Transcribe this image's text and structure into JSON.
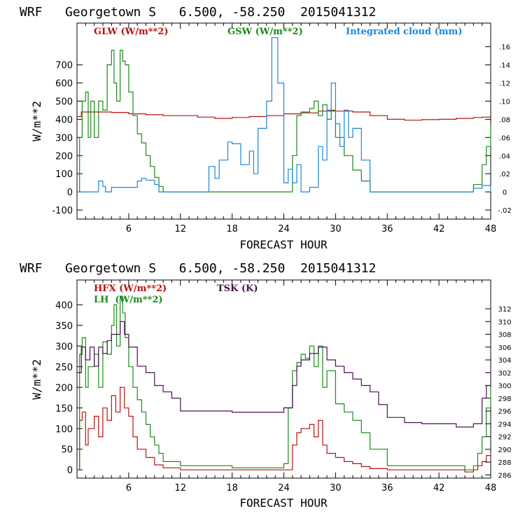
{
  "chart_data": [
    {
      "type": "line",
      "title": "WRF   Georgetown S   6.500, -58.250  2015041312",
      "xlabel": "FORECAST HOUR",
      "ylabel": "W/m**2",
      "xlim": [
        0,
        48
      ],
      "ylim": [
        -150,
        930
      ],
      "y2lim": [
        -0.03,
        0.186
      ],
      "xticks": [
        "6",
        "12",
        "18",
        "24",
        "30",
        "36",
        "42",
        "48"
      ],
      "yticks": [
        "-100",
        "0",
        "100",
        "200",
        "300",
        "400",
        "500",
        "600",
        "700"
      ],
      "y2ticks": [
        "-.02",
        "0",
        ".02",
        ".04",
        ".06",
        ".08",
        ".10",
        ".12",
        ".14",
        ".16"
      ],
      "legend": [
        "GLW (W/m**2)",
        "GSW (W/m**2)",
        "Integrated cloud (mm)"
      ],
      "series": [
        {
          "name": "GLW (W/m**2)",
          "axis": "left",
          "color": "#bb1111",
          "x": [
            0,
            0.5,
            1,
            2,
            4,
            6,
            8,
            10,
            12,
            14,
            16,
            18,
            20,
            22,
            24,
            26,
            28,
            30,
            32,
            34,
            36,
            38,
            40,
            42,
            44,
            46,
            47,
            48
          ],
          "y": [
            415,
            440,
            440,
            440,
            438,
            430,
            425,
            420,
            420,
            412,
            405,
            410,
            415,
            420,
            430,
            435,
            445,
            445,
            440,
            420,
            400,
            395,
            398,
            400,
            405,
            410,
            412,
            405
          ]
        },
        {
          "name": "GSW (W/m**2)",
          "axis": "left",
          "color": "#1a8a1a",
          "x": [
            0,
            0.3,
            0.6,
            1,
            1.3,
            1.6,
            2,
            2.5,
            3,
            3.5,
            4,
            4.3,
            4.6,
            5,
            5.3,
            5.6,
            6,
            6.5,
            7,
            7.5,
            8,
            8.5,
            9,
            9.5,
            10,
            24,
            25,
            25.5,
            26,
            27,
            27.5,
            28,
            28.5,
            29,
            29.5,
            30,
            31,
            32,
            33,
            34,
            45,
            46,
            47,
            47.5,
            48
          ],
          "y": [
            0,
            300,
            500,
            550,
            300,
            500,
            300,
            500,
            450,
            700,
            780,
            600,
            500,
            780,
            720,
            700,
            550,
            420,
            320,
            270,
            200,
            140,
            80,
            30,
            0,
            0,
            200,
            420,
            440,
            460,
            500,
            420,
            480,
            400,
            450,
            300,
            200,
            120,
            60,
            0,
            0,
            40,
            150,
            250,
            370
          ]
        },
        {
          "name": "Integrated cloud (mm)",
          "axis": "right",
          "color": "#1f85d8",
          "x": [
            0,
            2,
            2.5,
            3,
            3.3,
            4,
            6,
            7,
            7.5,
            8,
            9,
            9.5,
            15,
            15.3,
            16,
            16.5,
            17.5,
            18,
            19,
            20,
            20.5,
            21,
            22,
            22.6,
            23.3,
            24,
            24.5,
            25,
            25.5,
            26,
            27,
            28,
            28.5,
            29,
            29.5,
            30,
            30.5,
            31,
            31.5,
            32,
            33,
            34,
            45,
            46,
            47,
            48
          ],
          "y": [
            0,
            0,
            0.012,
            0.006,
            0,
            0.005,
            0.005,
            0.012,
            0.015,
            0.013,
            0.008,
            0,
            0,
            0.028,
            0.015,
            0.035,
            0.055,
            0.053,
            0.03,
            0.045,
            0.02,
            0.07,
            0.1,
            0.17,
            0.12,
            0.01,
            0.025,
            0.01,
            0.03,
            0,
            0.005,
            0.05,
            0.035,
            0.09,
            0.12,
            0.075,
            0.05,
            0.09,
            0.06,
            0.07,
            0.035,
            0,
            0,
            0.004,
            0.007,
            0
          ]
        }
      ]
    },
    {
      "type": "line",
      "title": "WRF   Georgetown S   6.500, -58.250  2015041312",
      "xlabel": "FORECAST HOUR",
      "ylabel": "W/m**2",
      "xlim": [
        0,
        48
      ],
      "ylim": [
        -20,
        460
      ],
      "y2lim": [
        285.5,
        316.5
      ],
      "xticks": [
        "6",
        "12",
        "18",
        "24",
        "30",
        "36",
        "42",
        "48"
      ],
      "yticks": [
        "0",
        "50",
        "100",
        "150",
        "200",
        "250",
        "300",
        "350",
        "400"
      ],
      "y2ticks": [
        "286",
        "288",
        "290",
        "292",
        "294",
        "296",
        "298",
        "300",
        "302",
        "304",
        "306",
        "308",
        "310",
        "312"
      ],
      "legend": [
        "HFX (W/m**2)",
        "LH  (W/m**2)",
        "TSK (K)"
      ],
      "series": [
        {
          "name": "HFX (W/m**2)",
          "axis": "left",
          "color": "#bb1111",
          "x": [
            0,
            0.3,
            0.6,
            1,
            1.3,
            2,
            2.5,
            3,
            3.5,
            4,
            4.5,
            5,
            5.5,
            6,
            6.5,
            7,
            8,
            9,
            10,
            12,
            18,
            24,
            25,
            25.5,
            26,
            27,
            27.5,
            28,
            28.5,
            29,
            30,
            31,
            32,
            33,
            34,
            36,
            45,
            46,
            46.5,
            47,
            47.5,
            48
          ],
          "y": [
            0,
            120,
            140,
            60,
            100,
            130,
            80,
            150,
            120,
            180,
            140,
            200,
            150,
            130,
            80,
            50,
            30,
            12,
            5,
            0,
            0,
            0,
            60,
            90,
            100,
            110,
            80,
            120,
            60,
            40,
            30,
            20,
            15,
            8,
            3,
            0,
            -5,
            0,
            10,
            20,
            35,
            40
          ]
        },
        {
          "name": "LH  (W/m**2)",
          "axis": "left",
          "color": "#1a8a1a",
          "x": [
            0,
            0.3,
            0.6,
            1,
            1.3,
            2,
            2.5,
            3,
            3.5,
            4,
            4.3,
            4.6,
            5,
            5.3,
            5.6,
            6,
            6.5,
            7,
            7.5,
            8,
            8.5,
            9,
            9.5,
            10,
            12,
            18,
            24,
            24.5,
            25,
            25.5,
            26,
            26.5,
            27,
            27.5,
            28,
            28.5,
            29,
            30,
            31,
            32,
            33,
            34,
            36,
            45,
            45.5,
            46,
            46.5,
            47,
            47.5,
            48
          ],
          "y": [
            0,
            280,
            320,
            200,
            250,
            280,
            200,
            310,
            280,
            350,
            400,
            300,
            420,
            380,
            320,
            250,
            200,
            170,
            140,
            110,
            80,
            60,
            40,
            20,
            10,
            5,
            15,
            150,
            240,
            260,
            280,
            270,
            300,
            250,
            300,
            200,
            240,
            160,
            140,
            120,
            90,
            50,
            10,
            0,
            0,
            10,
            40,
            80,
            150,
            200
          ]
        },
        {
          "name": "TSK (K)",
          "axis": "right",
          "color": "#4a1050",
          "x": [
            0,
            0.5,
            1,
            1.5,
            2,
            2.5,
            3,
            3.5,
            4,
            4.5,
            5,
            5.5,
            6,
            7,
            8,
            9,
            10,
            11,
            12,
            18,
            22,
            24,
            25,
            25.5,
            26,
            27,
            28,
            29,
            30,
            31,
            32,
            33,
            34,
            35,
            36,
            38,
            40,
            42,
            44,
            45,
            46,
            47,
            47.5,
            48
          ],
          "y": [
            302,
            306,
            304,
            306,
            303,
            306,
            305,
            307,
            308,
            308,
            310,
            308,
            306,
            303,
            302,
            300,
            299,
            298,
            296,
            295.8,
            295.8,
            296.5,
            300,
            303,
            304,
            305,
            306,
            304,
            303,
            302,
            301,
            300,
            299,
            297,
            295,
            294.2,
            294,
            294,
            293.5,
            293.5,
            294,
            298,
            300,
            302
          ]
        }
      ]
    }
  ]
}
